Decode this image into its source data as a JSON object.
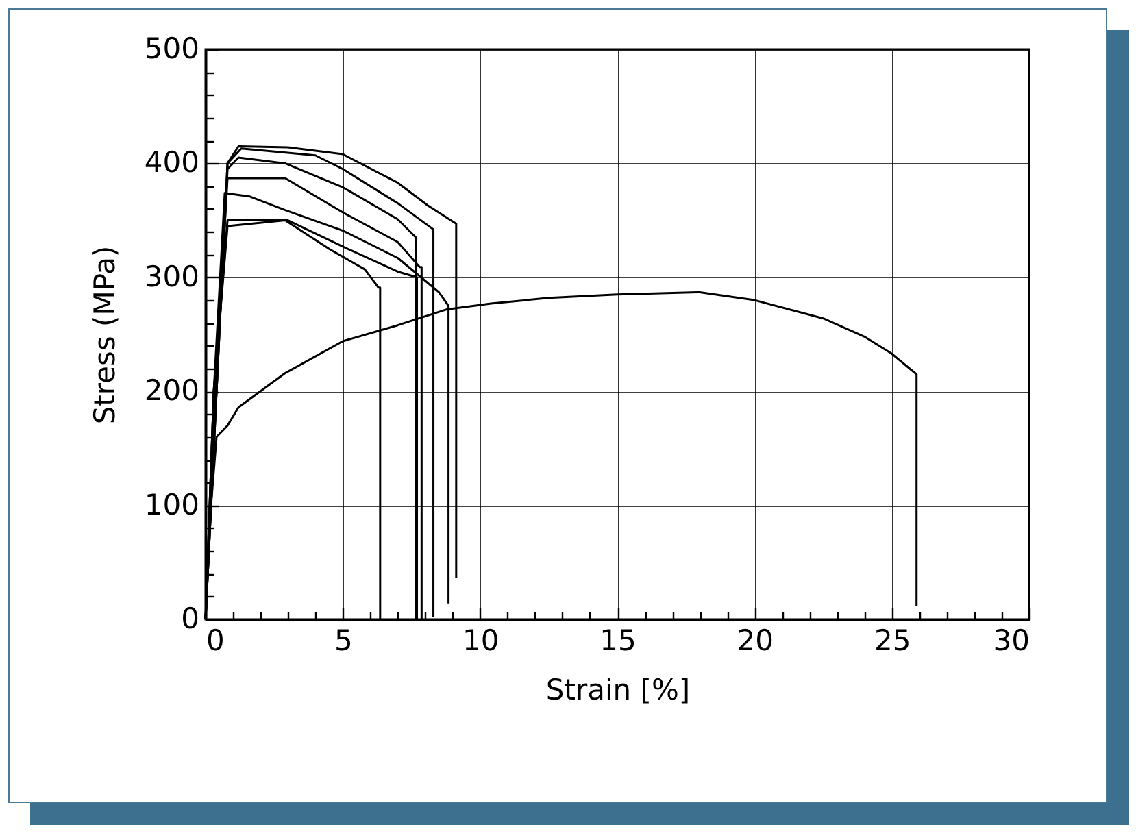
{
  "chart_data": {
    "type": "line",
    "xlabel": "Strain [%]",
    "ylabel": "Stress (MPa)",
    "xlim": [
      0,
      30
    ],
    "ylim": [
      0,
      500
    ],
    "xticks": [
      0,
      {
        "value": 1,
        "label": null
      },
      {
        "value": 2,
        "label": null
      },
      {
        "value": 3,
        "label": null
      },
      {
        "value": 4,
        "label": null
      },
      5,
      {
        "value": 6,
        "label": null
      },
      {
        "value": 7,
        "label": null
      },
      {
        "value": 8,
        "label": null
      },
      {
        "value": 9,
        "label": null
      },
      10,
      {
        "value": 11,
        "label": null
      },
      {
        "value": 12,
        "label": null
      },
      {
        "value": 13,
        "label": null
      },
      {
        "value": 14,
        "label": null
      },
      15,
      {
        "value": 16,
        "label": null
      },
      {
        "value": 17,
        "label": null
      },
      {
        "value": 18,
        "label": null
      },
      {
        "value": 19,
        "label": null
      },
      20,
      {
        "value": 21,
        "label": null
      },
      {
        "value": 22,
        "label": null
      },
      {
        "value": 23,
        "label": null
      },
      {
        "value": 24,
        "label": null
      },
      25,
      {
        "value": 26,
        "label": null
      },
      {
        "value": 27,
        "label": null
      },
      {
        "value": 28,
        "label": null
      },
      {
        "value": 29,
        "label": null
      },
      30
    ],
    "yticks": [
      0,
      {
        "value": 20,
        "label": null
      },
      {
        "value": 40,
        "label": null
      },
      {
        "value": 60,
        "label": null
      },
      {
        "value": 80,
        "label": null
      },
      100,
      {
        "value": 120,
        "label": null
      },
      {
        "value": 140,
        "label": null
      },
      {
        "value": 160,
        "label": null
      },
      {
        "value": 180,
        "label": null
      },
      200,
      {
        "value": 220,
        "label": null
      },
      {
        "value": 240,
        "label": null
      },
      {
        "value": 260,
        "label": null
      },
      {
        "value": 280,
        "label": null
      },
      300,
      {
        "value": 320,
        "label": null
      },
      {
        "value": 340,
        "label": null
      },
      {
        "value": 360,
        "label": null
      },
      {
        "value": 380,
        "label": null
      },
      400,
      {
        "value": 420,
        "label": null
      },
      {
        "value": 440,
        "label": null
      },
      {
        "value": 460,
        "label": null
      },
      {
        "value": 480,
        "label": null
      },
      500
    ],
    "grid": true,
    "line_style": "solid",
    "series": [
      {
        "color": "#000000",
        "x": [
          0,
          0.4,
          0.8,
          1.2,
          3,
          5,
          7,
          8.1,
          9.13,
          9.13
        ],
        "values": [
          0,
          200,
          400,
          415,
          414,
          408,
          383,
          363,
          347,
          36
        ]
      },
      {
        "color": "#000000",
        "x": [
          0,
          0.4,
          0.8,
          1.3,
          4,
          5,
          7,
          8.3,
          8.3
        ],
        "values": [
          0,
          200,
          400,
          413,
          407,
          395,
          365,
          342,
          2
        ]
      },
      {
        "color": "#000000",
        "x": [
          0,
          0.4,
          0.8,
          1.2,
          2.9,
          5,
          7,
          7.66,
          7.66
        ],
        "values": [
          0,
          200,
          395,
          405,
          400,
          379,
          351,
          335,
          0
        ]
      },
      {
        "color": "#000000",
        "x": [
          0,
          0.35,
          0.8,
          2.9,
          5,
          7,
          7.8,
          7.87,
          7.87
        ],
        "values": [
          0,
          200,
          387,
          387,
          357,
          331,
          309,
          309,
          0
        ]
      },
      {
        "color": "#000000",
        "x": [
          0,
          0.3,
          0.7,
          1.6,
          2.9,
          5,
          7,
          8.5,
          8.85,
          8.85
        ],
        "values": [
          0,
          200,
          374,
          371,
          359,
          341,
          317,
          287,
          275,
          14
        ]
      },
      {
        "color": "#000000",
        "x": [
          0,
          0.3,
          0.8,
          3,
          5,
          7,
          7.7,
          7.7
        ],
        "values": [
          0,
          200,
          350,
          350,
          327,
          305,
          300,
          0
        ]
      },
      {
        "color": "#000000",
        "x": [
          0,
          0.3,
          0.8,
          2.9,
          4.5,
          5.8,
          6.3,
          6.36,
          6.36
        ],
        "values": [
          0,
          200,
          345,
          350,
          325,
          307,
          291,
          291,
          0
        ]
      },
      {
        "color": "#000000",
        "x": [
          0,
          0.2,
          0.4,
          0.8,
          1.2,
          2.9,
          5,
          7,
          8.8,
          10.4,
          12.5,
          15,
          18,
          20,
          22.5,
          24,
          25,
          25.9,
          25.9
        ],
        "values": [
          0,
          100,
          160,
          170,
          186,
          216,
          244,
          258,
          272,
          277,
          282,
          285,
          287,
          280,
          264,
          248,
          233,
          215,
          12
        ]
      }
    ]
  }
}
